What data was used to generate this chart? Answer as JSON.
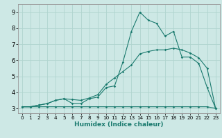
{
  "title": "",
  "xlabel": "Humidex (Indice chaleur)",
  "bg_color": "#cde8e5",
  "line_color": "#1a7a6e",
  "grid_color": "#b0d4cf",
  "xlim": [
    -0.5,
    23.5
  ],
  "ylim": [
    2.7,
    9.5
  ],
  "xticks": [
    0,
    1,
    2,
    3,
    4,
    5,
    6,
    7,
    8,
    9,
    10,
    11,
    12,
    13,
    14,
    15,
    16,
    17,
    18,
    19,
    20,
    21,
    22,
    23
  ],
  "yticks": [
    3,
    4,
    5,
    6,
    7,
    8,
    9
  ],
  "line1_x": [
    0,
    1,
    2,
    3,
    4,
    5,
    6,
    7,
    8,
    9,
    10,
    11,
    12,
    13,
    14,
    15,
    16,
    17,
    18,
    19,
    20,
    21,
    22,
    23
  ],
  "line1_y": [
    3.1,
    3.1,
    3.2,
    3.3,
    3.5,
    3.6,
    3.3,
    3.3,
    3.6,
    3.7,
    4.3,
    4.4,
    5.9,
    7.8,
    9.0,
    8.5,
    8.3,
    7.5,
    7.8,
    6.2,
    6.2,
    5.8,
    4.3,
    3.0
  ],
  "line2_x": [
    0,
    1,
    2,
    3,
    4,
    5,
    6,
    7,
    8,
    9,
    10,
    11,
    12,
    13,
    14,
    15,
    16,
    17,
    18,
    19,
    20,
    21,
    22,
    23
  ],
  "line2_y": [
    3.1,
    3.1,
    3.2,
    3.3,
    3.5,
    3.6,
    3.55,
    3.5,
    3.65,
    3.85,
    4.5,
    4.9,
    5.3,
    5.7,
    6.4,
    6.55,
    6.65,
    6.65,
    6.75,
    6.65,
    6.45,
    6.15,
    5.5,
    3.0
  ],
  "line3_x": [
    0,
    1,
    2,
    3,
    4,
    5,
    6,
    7,
    8,
    9,
    10,
    11,
    12,
    13,
    14,
    15,
    16,
    17,
    18,
    19,
    20,
    21,
    22,
    23
  ],
  "line3_y": [
    3.1,
    3.1,
    3.1,
    3.1,
    3.1,
    3.1,
    3.1,
    3.1,
    3.1,
    3.1,
    3.1,
    3.1,
    3.1,
    3.1,
    3.1,
    3.1,
    3.1,
    3.1,
    3.1,
    3.1,
    3.1,
    3.1,
    3.1,
    3.0
  ],
  "xtick_fontsize": 5.2,
  "ytick_fontsize": 6.0,
  "xlabel_fontsize": 6.5
}
